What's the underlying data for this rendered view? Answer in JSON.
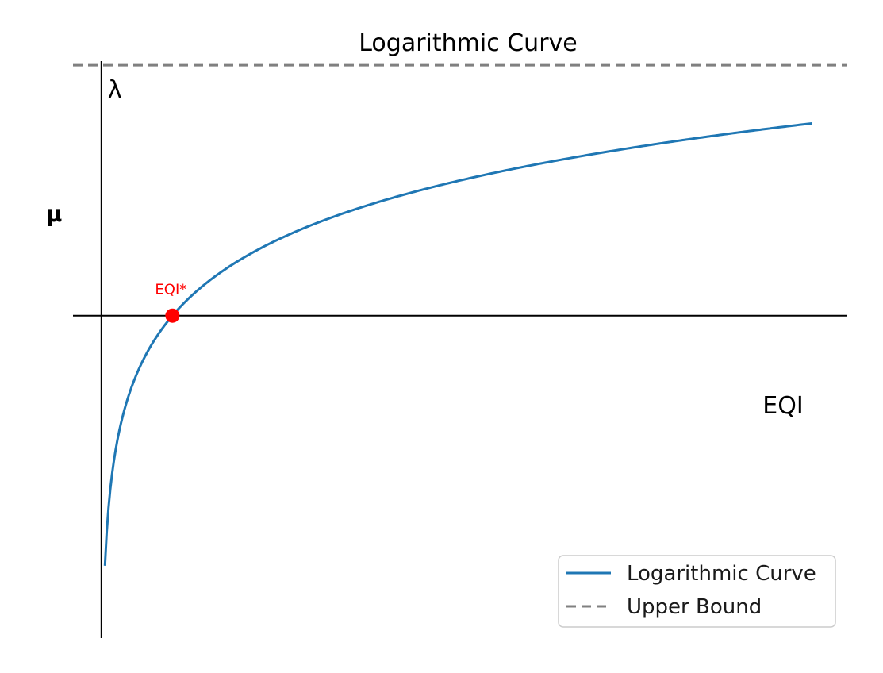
{
  "chart_data": {
    "type": "line",
    "title": "Logarithmic Curve",
    "xlabel": "EQI",
    "ylabel": "μ",
    "xlim": [
      -0.4,
      10.5
    ],
    "ylim": [
      -3.9,
      3.4
    ],
    "grid": false,
    "legend_position": "bottom-right",
    "series": [
      {
        "name": "Logarithmic Curve",
        "style": "solid",
        "color": "#1f77b4",
        "function": "log(x)",
        "x_range": [
          0.05,
          10
        ]
      },
      {
        "name": "Upper Bound",
        "style": "dashed",
        "color": "#808080",
        "y": 3.0
      }
    ],
    "annotations": [
      {
        "text": "EQI*",
        "x": 1,
        "y": 0,
        "color": "#ff0000",
        "marker": "point"
      },
      {
        "text": "λ",
        "x": 0,
        "y": 3.0,
        "color": "#000000"
      }
    ]
  }
}
